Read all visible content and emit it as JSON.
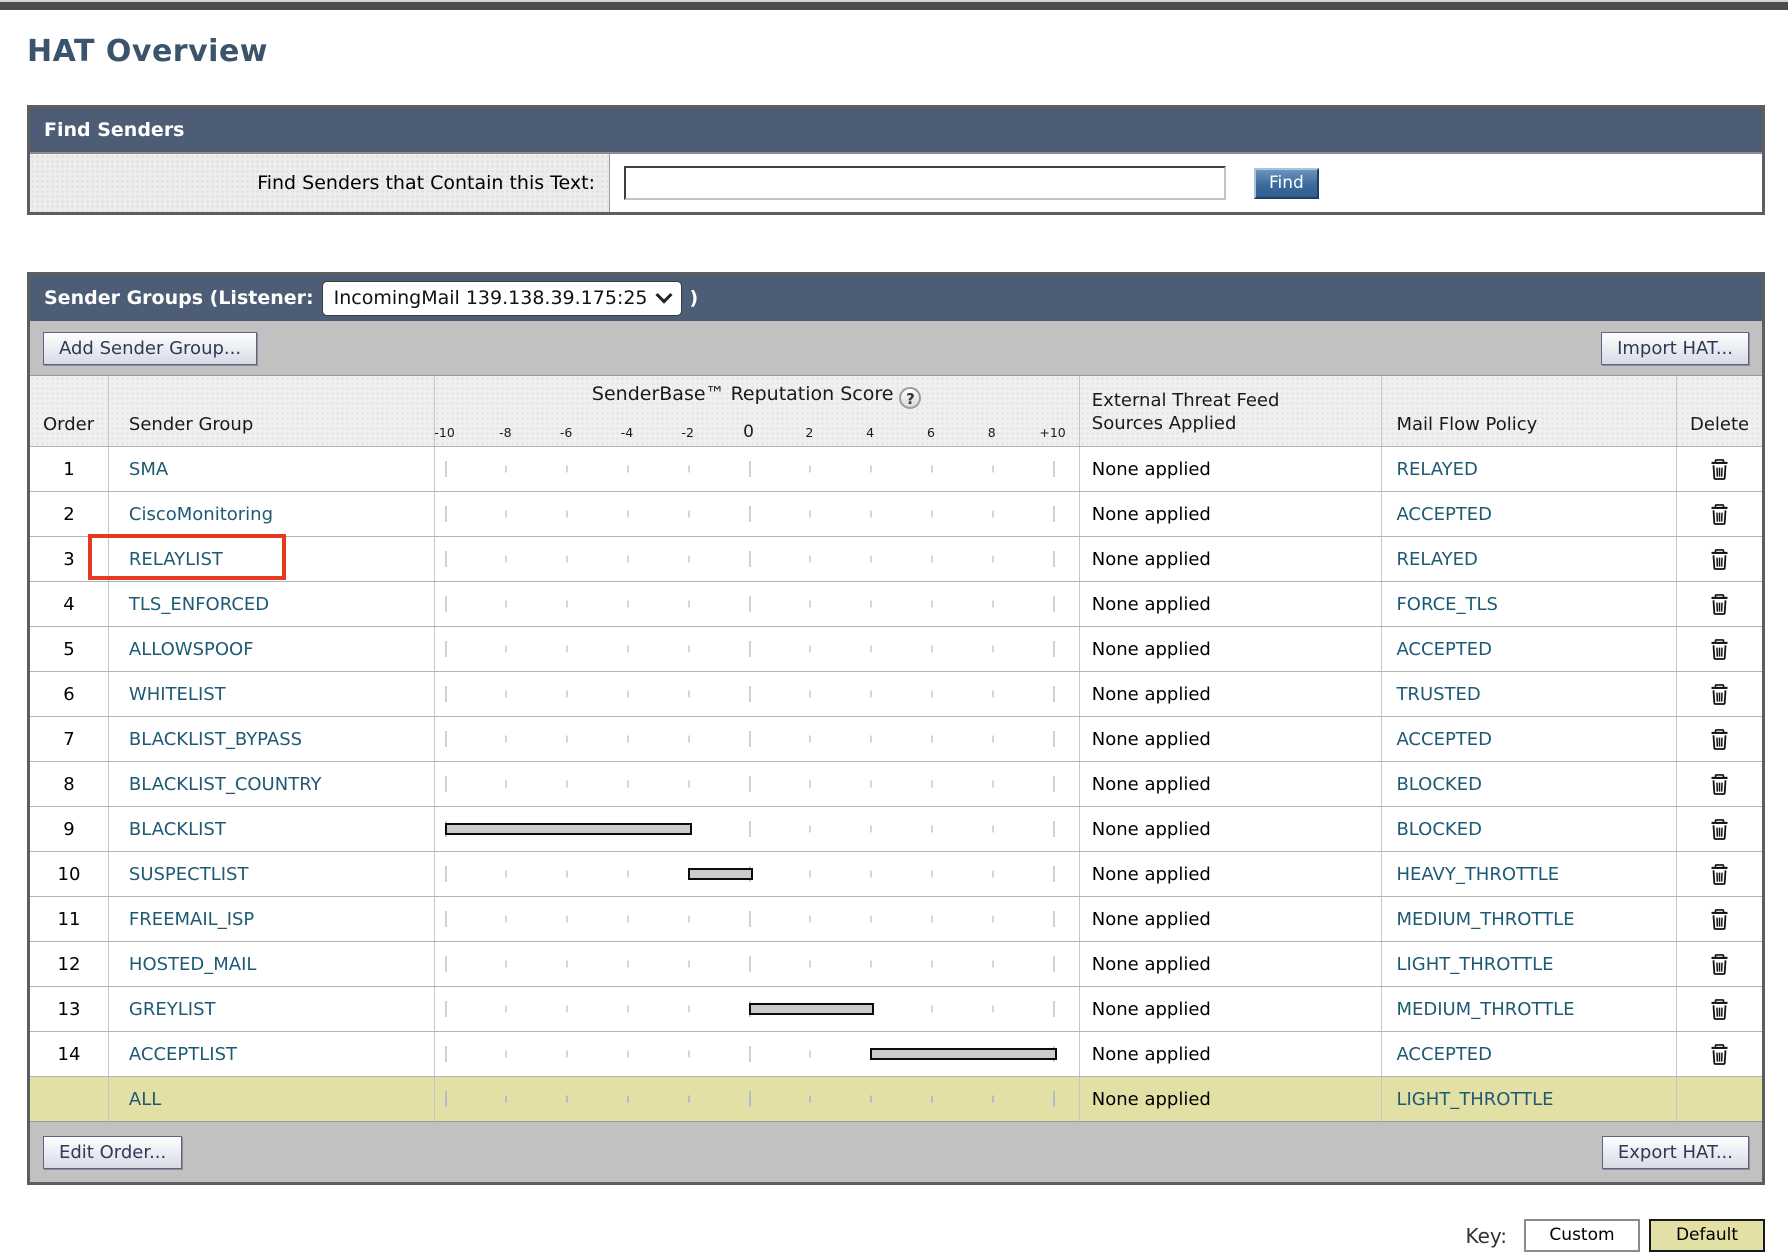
{
  "page": {
    "title": "HAT Overview"
  },
  "find_senders": {
    "header": "Find Senders",
    "label": "Find Senders that Contain this Text:",
    "input_value": "",
    "find_button": "Find"
  },
  "sender_groups": {
    "header_prefix": "Sender Groups (Listener:",
    "listener_selected": "IncomingMail 139.138.39.175:25",
    "header_suffix": ")",
    "add_button": "Add Sender Group...",
    "import_button": "Import HAT...",
    "edit_order_button": "Edit Order...",
    "export_button": "Export HAT...",
    "table": {
      "headers": {
        "order": "Order",
        "sender_group": "Sender Group",
        "score_title": "SenderBase™ Reputation Score",
        "help_icon": "?",
        "etf_line1": "External Threat Feed",
        "etf_line2": "Sources Applied",
        "mail_flow_policy": "Mail Flow Policy",
        "delete": "Delete"
      },
      "score_axis": {
        "min": -10,
        "max": 10,
        "tick_values": [
          -10,
          -8,
          -6,
          -4,
          -2,
          0,
          2,
          4,
          6,
          8,
          10
        ],
        "tick_labels": [
          "-10",
          "-8",
          "-6",
          "-4",
          "-2",
          "0",
          "2",
          "4",
          "6",
          "8",
          "+10"
        ]
      },
      "rows": [
        {
          "order": "1",
          "group": "SMA",
          "score_bar": null,
          "etf": "None applied",
          "policy": "RELAYED",
          "deletable": true,
          "highlighted": false,
          "annotated": false
        },
        {
          "order": "2",
          "group": "CiscoMonitoring",
          "score_bar": null,
          "etf": "None applied",
          "policy": "ACCEPTED",
          "deletable": true,
          "highlighted": false,
          "annotated": false
        },
        {
          "order": "3",
          "group": "RELAYLIST",
          "score_bar": null,
          "etf": "None applied",
          "policy": "RELAYED",
          "deletable": true,
          "highlighted": false,
          "annotated": true
        },
        {
          "order": "4",
          "group": "TLS_ENFORCED",
          "score_bar": null,
          "etf": "None applied",
          "policy": "FORCE_TLS",
          "deletable": true,
          "highlighted": false,
          "annotated": false
        },
        {
          "order": "5",
          "group": "ALLOWSPOOF",
          "score_bar": null,
          "etf": "None applied",
          "policy": "ACCEPTED",
          "deletable": true,
          "highlighted": false,
          "annotated": false
        },
        {
          "order": "6",
          "group": "WHITELIST",
          "score_bar": null,
          "etf": "None applied",
          "policy": "TRUSTED",
          "deletable": true,
          "highlighted": false,
          "annotated": false
        },
        {
          "order": "7",
          "group": "BLACKLIST_BYPASS",
          "score_bar": null,
          "etf": "None applied",
          "policy": "ACCEPTED",
          "deletable": true,
          "highlighted": false,
          "annotated": false
        },
        {
          "order": "8",
          "group": "BLACKLIST_COUNTRY",
          "score_bar": null,
          "etf": "None applied",
          "policy": "BLOCKED",
          "deletable": true,
          "highlighted": false,
          "annotated": false
        },
        {
          "order": "9",
          "group": "BLACKLIST",
          "score_bar": [
            -10,
            -2
          ],
          "etf": "None applied",
          "policy": "BLOCKED",
          "deletable": true,
          "highlighted": false,
          "annotated": false
        },
        {
          "order": "10",
          "group": "SUSPECTLIST",
          "score_bar": [
            -2,
            0
          ],
          "etf": "None applied",
          "policy": "HEAVY_THROTTLE",
          "deletable": true,
          "highlighted": false,
          "annotated": false
        },
        {
          "order": "11",
          "group": "FREEMAIL_ISP",
          "score_bar": null,
          "etf": "None applied",
          "policy": "MEDIUM_THROTTLE",
          "deletable": true,
          "highlighted": false,
          "annotated": false
        },
        {
          "order": "12",
          "group": "HOSTED_MAIL",
          "score_bar": null,
          "etf": "None applied",
          "policy": "LIGHT_THROTTLE",
          "deletable": true,
          "highlighted": false,
          "annotated": false
        },
        {
          "order": "13",
          "group": "GREYLIST",
          "score_bar": [
            0,
            4
          ],
          "etf": "None applied",
          "policy": "MEDIUM_THROTTLE",
          "deletable": true,
          "highlighted": false,
          "annotated": false
        },
        {
          "order": "14",
          "group": "ACCEPTLIST",
          "score_bar": [
            4,
            10
          ],
          "etf": "None applied",
          "policy": "ACCEPTED",
          "deletable": true,
          "highlighted": false,
          "annotated": false
        },
        {
          "order": "",
          "group": "ALL",
          "score_bar": null,
          "etf": "None applied",
          "policy": "LIGHT_THROTTLE",
          "deletable": false,
          "highlighted": true,
          "annotated": false
        }
      ]
    }
  },
  "key_legend": {
    "label": "Key:",
    "custom_label": "Custom",
    "default_label": "Default"
  },
  "colors": {
    "header_bar": "#4d5d75",
    "title_text": "#3c536c",
    "link": "#1e5a73",
    "highlight_row": "#e3e0a5",
    "annotation_red": "#e6391f",
    "toolbar_gray": "#c1c1c1",
    "find_button_blue": "#2d5e90",
    "default_swatch": "#e3e0a5"
  }
}
